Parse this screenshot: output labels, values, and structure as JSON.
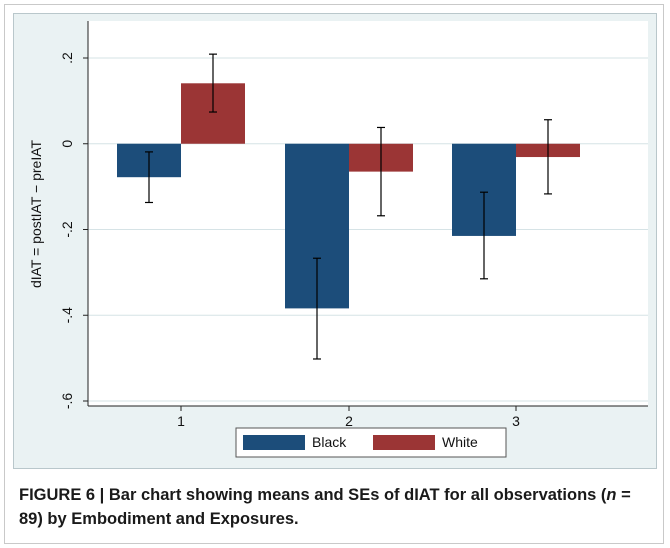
{
  "chart_data": {
    "type": "bar",
    "categories": [
      "1",
      "2",
      "3"
    ],
    "series": [
      {
        "name": "Black",
        "values": [
          -0.078,
          -0.384,
          -0.215
        ],
        "se_low": [
          -0.137,
          -0.502,
          -0.315
        ],
        "se_high": [
          -0.019,
          -0.267,
          -0.113
        ],
        "color": "#1c4d7a"
      },
      {
        "name": "White",
        "values": [
          0.141,
          -0.065,
          -0.031
        ],
        "se_low": [
          0.074,
          -0.168,
          -0.117
        ],
        "se_high": [
          0.209,
          0.038,
          0.056
        ],
        "color": "#9b3535"
      }
    ],
    "ylabel": "dIAT = postIAT − preIAT",
    "xlabel": "",
    "ylim": [
      -0.6,
      0.2
    ],
    "yticks": [
      -0.6,
      -0.4,
      -0.2,
      0,
      0.2
    ],
    "ytick_labels": [
      "-.6",
      "-.4",
      "-.2",
      "0",
      ".2"
    ],
    "grid": true,
    "legend_position": "bottom"
  },
  "caption": {
    "prefix": "FIGURE 6 | Bar chart showing means and SEs of dIAT for all observations (",
    "italic": "n",
    "suffix": " = 89) by Embodiment and Exposures."
  }
}
